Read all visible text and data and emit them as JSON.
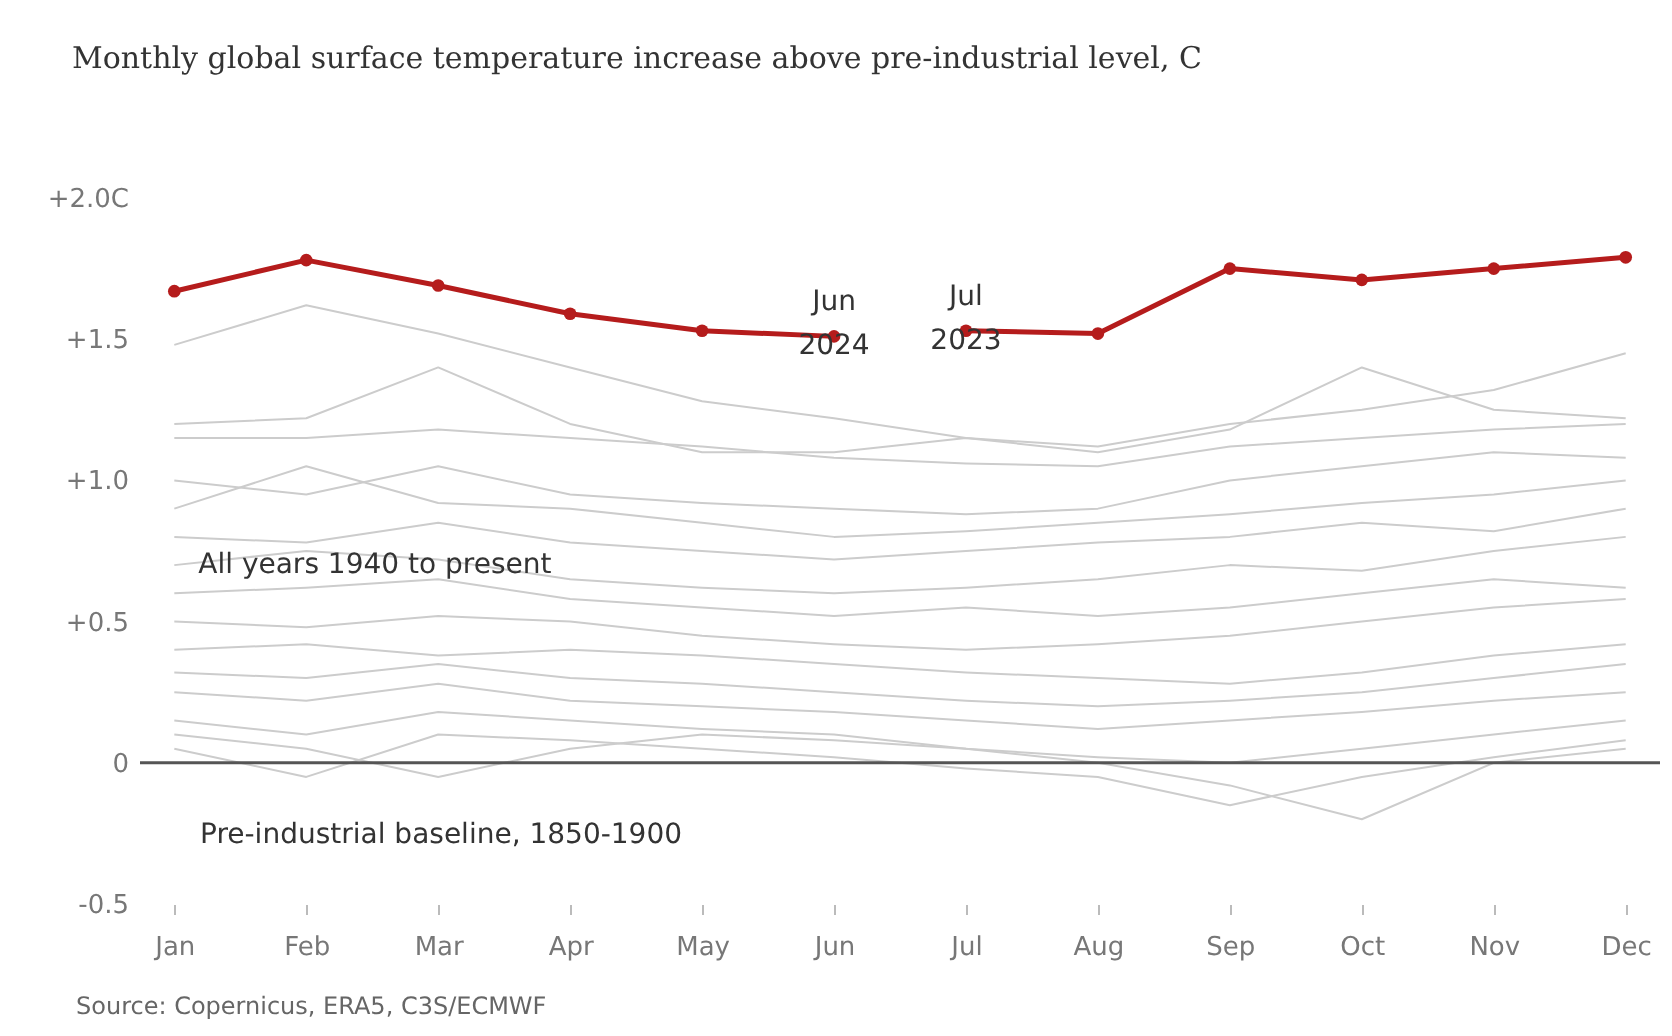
{
  "chart_data": {
    "type": "line",
    "title": "Monthly global surface temperature increase above pre-industrial level, C",
    "categories": [
      "Jan",
      "Feb",
      "Mar",
      "Apr",
      "May",
      "Jun",
      "Jul",
      "Aug",
      "Sep",
      "Oct",
      "Nov",
      "Dec"
    ],
    "ylim": [
      -0.5,
      2.0
    ],
    "yticks": [
      {
        "value": 2.0,
        "label": "+2.0C"
      },
      {
        "value": 1.5,
        "label": "+1.5"
      },
      {
        "value": 1.0,
        "label": "+1.0"
      },
      {
        "value": 0.5,
        "label": "+0.5"
      },
      0,
      -0.5
    ],
    "grid": false,
    "series": [
      {
        "color": "#cccccc",
        "marker": "none",
        "values": [
          1.48,
          1.62,
          1.52,
          1.4,
          1.28,
          1.22,
          1.15,
          1.12,
          1.2,
          1.25,
          1.32,
          1.45
        ]
      },
      {
        "color": "#cccccc",
        "marker": "none",
        "values": [
          1.2,
          1.22,
          1.4,
          1.2,
          1.1,
          1.1,
          1.15,
          1.1,
          1.18,
          1.4,
          1.25,
          1.22
        ]
      },
      {
        "color": "#cccccc",
        "marker": "none",
        "values": [
          1.15,
          1.15,
          1.18,
          1.15,
          1.12,
          1.08,
          1.06,
          1.05,
          1.12,
          1.15,
          1.18,
          1.2
        ]
      },
      {
        "color": "#cccccc",
        "marker": "none",
        "values": [
          1.0,
          0.95,
          1.05,
          0.95,
          0.92,
          0.9,
          0.88,
          0.9,
          1.0,
          1.05,
          1.1,
          1.08
        ]
      },
      {
        "color": "#cccccc",
        "marker": "none",
        "values": [
          0.9,
          1.05,
          0.92,
          0.9,
          0.85,
          0.8,
          0.82,
          0.85,
          0.88,
          0.92,
          0.95,
          1.0
        ]
      },
      {
        "color": "#cccccc",
        "marker": "none",
        "values": [
          0.8,
          0.78,
          0.85,
          0.78,
          0.75,
          0.72,
          0.75,
          0.78,
          0.8,
          0.85,
          0.82,
          0.9
        ]
      },
      {
        "color": "#cccccc",
        "marker": "none",
        "values": [
          0.7,
          0.75,
          0.72,
          0.65,
          0.62,
          0.6,
          0.62,
          0.65,
          0.7,
          0.68,
          0.75,
          0.8
        ]
      },
      {
        "color": "#cccccc",
        "marker": "none",
        "values": [
          0.6,
          0.62,
          0.65,
          0.58,
          0.55,
          0.52,
          0.55,
          0.52,
          0.55,
          0.6,
          0.65,
          0.62
        ]
      },
      {
        "color": "#cccccc",
        "marker": "none",
        "values": [
          0.5,
          0.48,
          0.52,
          0.5,
          0.45,
          0.42,
          0.4,
          0.42,
          0.45,
          0.5,
          0.55,
          0.58
        ]
      },
      {
        "color": "#cccccc",
        "marker": "none",
        "values": [
          0.4,
          0.42,
          0.38,
          0.4,
          0.38,
          0.35,
          0.32,
          0.3,
          0.28,
          0.32,
          0.38,
          0.42
        ]
      },
      {
        "color": "#cccccc",
        "marker": "none",
        "values": [
          0.32,
          0.3,
          0.35,
          0.3,
          0.28,
          0.25,
          0.22,
          0.2,
          0.22,
          0.25,
          0.3,
          0.35
        ]
      },
      {
        "color": "#cccccc",
        "marker": "none",
        "values": [
          0.25,
          0.22,
          0.28,
          0.22,
          0.2,
          0.18,
          0.15,
          0.12,
          0.15,
          0.18,
          0.22,
          0.25
        ]
      },
      {
        "color": "#cccccc",
        "marker": "none",
        "values": [
          0.15,
          0.1,
          0.18,
          0.15,
          0.12,
          0.1,
          0.05,
          0.02,
          0.0,
          0.05,
          0.1,
          0.15
        ]
      },
      {
        "color": "#cccccc",
        "marker": "none",
        "values": [
          0.05,
          -0.05,
          0.1,
          0.08,
          0.05,
          0.02,
          -0.02,
          -0.05,
          -0.15,
          -0.05,
          0.02,
          0.08
        ]
      },
      {
        "color": "#cccccc",
        "marker": "none",
        "values": [
          0.1,
          0.05,
          -0.05,
          0.05,
          0.1,
          0.08,
          0.05,
          0.0,
          -0.08,
          -0.2,
          0.0,
          0.05
        ]
      },
      {
        "color": "#b51c1c",
        "marker": "circle",
        "values": [
          1.67,
          1.78,
          1.69,
          1.59,
          1.53,
          1.51,
          null,
          null,
          null,
          null,
          null,
          null
        ]
      },
      {
        "color": "#b51c1c",
        "marker": "circle",
        "values": [
          null,
          null,
          null,
          null,
          null,
          null,
          1.53,
          1.52,
          1.75,
          1.71,
          1.75,
          1.79
        ]
      }
    ],
    "ref_lines": [
      {
        "axis": "y",
        "value": 0,
        "label": "Pre-industrial baseline, 1850-1900",
        "color": "#555555"
      }
    ],
    "annotations": [
      {
        "text": "Jun\n2024",
        "x": "Jun",
        "y": 1.51
      },
      {
        "text": "Jul\n2023",
        "x": "Jul",
        "y": 1.53
      },
      {
        "text": "All years 1940 to present",
        "x": "Jan",
        "y": 0.7
      },
      "Source: Copernicus, ERA5, C3S/ECMWF"
    ]
  }
}
